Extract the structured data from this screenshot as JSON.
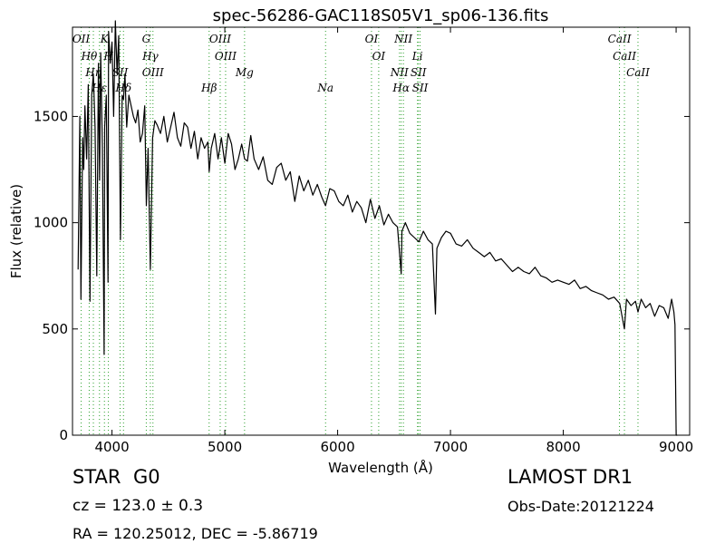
{
  "chart_data": {
    "type": "line",
    "title": "spec-56286-GAC118S05V1_sp06-136.fits",
    "xlabel": "Wavelength (Å)",
    "ylabel": "Flux (relative)",
    "xlim": [
      3650,
      9120
    ],
    "ylim": [
      0,
      1920
    ],
    "xticks": [
      4000,
      5000,
      6000,
      7000,
      8000,
      9000
    ],
    "yticks": [
      0,
      500,
      1000,
      1500
    ],
    "grid": false,
    "series": [
      {
        "color": "#000000",
        "x": [
          3700,
          3715,
          3725,
          3740,
          3750,
          3760,
          3775,
          3790,
          3805,
          3820,
          3835,
          3850,
          3865,
          3880,
          3890,
          3900,
          3915,
          3930,
          3935,
          3950,
          3965,
          3970,
          3985,
          4000,
          4015,
          4030,
          4045,
          4060,
          4075,
          4090,
          4102,
          4115,
          4130,
          4150,
          4170,
          4190,
          4210,
          4230,
          4250,
          4270,
          4290,
          4305,
          4320,
          4340,
          4360,
          4380,
          4400,
          4430,
          4460,
          4490,
          4520,
          4550,
          4580,
          4610,
          4640,
          4670,
          4700,
          4730,
          4760,
          4790,
          4820,
          4850,
          4861,
          4880,
          4910,
          4940,
          4970,
          5000,
          5030,
          5060,
          5090,
          5120,
          5150,
          5175,
          5200,
          5230,
          5260,
          5300,
          5340,
          5380,
          5420,
          5460,
          5500,
          5540,
          5580,
          5620,
          5660,
          5700,
          5740,
          5780,
          5820,
          5860,
          5893,
          5930,
          5970,
          6010,
          6050,
          6090,
          6130,
          6170,
          6210,
          6250,
          6290,
          6330,
          6370,
          6410,
          6450,
          6490,
          6530,
          6563,
          6570,
          6600,
          6640,
          6680,
          6720,
          6760,
          6800,
          6840,
          6867,
          6880,
          6920,
          6960,
          7000,
          7050,
          7100,
          7150,
          7200,
          7250,
          7300,
          7350,
          7400,
          7450,
          7500,
          7550,
          7600,
          7650,
          7700,
          7750,
          7800,
          7850,
          7900,
          7950,
          8000,
          8050,
          8100,
          8150,
          8200,
          8250,
          8300,
          8350,
          8400,
          8450,
          8500,
          8542,
          8560,
          8600,
          8640,
          8662,
          8690,
          8730,
          8770,
          8810,
          8850,
          8890,
          8930,
          8960,
          8980,
          8990,
          9000,
          9010
        ],
        "values": [
          780,
          1500,
          640,
          1400,
          1250,
          1550,
          1300,
          1650,
          630,
          1600,
          1700,
          1450,
          750,
          1750,
          1200,
          1800,
          1350,
          380,
          1450,
          1600,
          720,
          1900,
          1750,
          1850,
          1500,
          1950,
          1700,
          1880,
          920,
          1600,
          1580,
          1700,
          1450,
          1600,
          1550,
          1500,
          1470,
          1530,
          1380,
          1420,
          1550,
          1080,
          1350,
          780,
          1400,
          1480,
          1460,
          1420,
          1500,
          1380,
          1450,
          1520,
          1400,
          1360,
          1470,
          1450,
          1350,
          1430,
          1300,
          1400,
          1350,
          1380,
          1240,
          1350,
          1420,
          1300,
          1400,
          1280,
          1420,
          1370,
          1250,
          1300,
          1370,
          1300,
          1290,
          1410,
          1300,
          1250,
          1310,
          1200,
          1180,
          1260,
          1280,
          1200,
          1240,
          1100,
          1220,
          1150,
          1200,
          1130,
          1180,
          1120,
          1080,
          1160,
          1150,
          1100,
          1080,
          1130,
          1050,
          1100,
          1070,
          1000,
          1110,
          1020,
          1080,
          990,
          1040,
          1000,
          980,
          760,
          960,
          1000,
          950,
          930,
          910,
          960,
          920,
          900,
          570,
          880,
          930,
          960,
          950,
          900,
          890,
          920,
          880,
          860,
          840,
          860,
          820,
          830,
          800,
          770,
          790,
          770,
          760,
          790,
          750,
          740,
          720,
          730,
          720,
          710,
          730,
          690,
          700,
          680,
          670,
          660,
          640,
          650,
          620,
          500,
          640,
          610,
          630,
          580,
          640,
          600,
          620,
          560,
          610,
          600,
          550,
          640,
          580,
          520,
          0,
          0
        ]
      }
    ],
    "lines": [
      {
        "label": "OII",
        "x": 3727,
        "color": "#2ca02c"
      },
      {
        "label": "Hθ",
        "x": 3798,
        "color": "#2ca02c"
      },
      {
        "label": "Hη",
        "x": 3835,
        "color": "#2ca02c"
      },
      {
        "label": "Hε",
        "x": 3889,
        "color": "#2ca02c"
      },
      {
        "label": "K",
        "x": 3933,
        "color": "#2ca02c"
      },
      {
        "label": "H",
        "x": 3968,
        "color": "#2ca02c"
      },
      {
        "label": "SII",
        "x": 4072,
        "color": "#2ca02c"
      },
      {
        "label": "Hδ",
        "x": 4102,
        "color": "#2ca02c"
      },
      {
        "label": "G",
        "x": 4304,
        "color": "#2ca02c"
      },
      {
        "label": "Hγ",
        "x": 4340,
        "color": "#2ca02c"
      },
      {
        "label": "OIII",
        "x": 4363,
        "color": "#2ca02c"
      },
      {
        "label": "Hβ",
        "x": 4861,
        "color": "#2ca02c"
      },
      {
        "label": "OIII",
        "x": 4959,
        "color": "#2ca02c"
      },
      {
        "label": "OIII",
        "x": 5007,
        "color": "#2ca02c"
      },
      {
        "label": "Mg",
        "x": 5175,
        "color": "#2ca02c"
      },
      {
        "label": "Na",
        "x": 5893,
        "color": "#2ca02c"
      },
      {
        "label": "OI",
        "x": 6300,
        "color": "#2ca02c"
      },
      {
        "label": "OI",
        "x": 6364,
        "color": "#2ca02c"
      },
      {
        "label": "NII",
        "x": 6548,
        "color": "#2ca02c"
      },
      {
        "label": "Hα",
        "x": 6563,
        "color": "#2ca02c"
      },
      {
        "label": "NII",
        "x": 6583,
        "color": "#2ca02c"
      },
      {
        "label": "Li",
        "x": 6708,
        "color": "#2ca02c"
      },
      {
        "label": "SII",
        "x": 6716,
        "color": "#2ca02c"
      },
      {
        "label": "SII",
        "x": 6731,
        "color": "#2ca02c"
      },
      {
        "label": "CaII",
        "x": 8498,
        "color": "#2ca02c"
      },
      {
        "label": "CaII",
        "x": 8542,
        "color": "#2ca02c"
      },
      {
        "label": "CaII",
        "x": 8662,
        "color": "#2ca02c"
      }
    ]
  },
  "footer": {
    "class_label": "STAR",
    "subclass_label": "G0",
    "survey_label": "LAMOST DR1",
    "redshift_text": "cz = 123.0 ± 0.3",
    "obs_date_text": "Obs-Date:20121224",
    "coords_text": "RA = 120.25012, DEC = -5.86719"
  }
}
